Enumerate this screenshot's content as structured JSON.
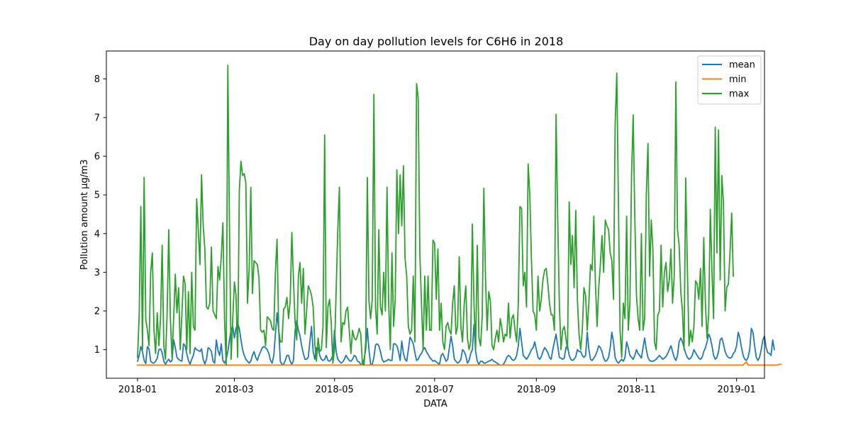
{
  "chart_data": {
    "type": "line",
    "title": "Day on day pollution levels for C6H6 in 2018",
    "xlabel": "DATA",
    "ylabel": "Pollution amount µg/m3",
    "x_start": "2018-01-01",
    "x_end": "2018-12-31",
    "xlim": [
      "2017-12-13",
      "2019-01-18"
    ],
    "ylim": [
      0.26,
      8.72
    ],
    "x_ticks": [
      "2018-01",
      "2018-03",
      "2018-05",
      "2018-07",
      "2018-09",
      "2018-11",
      "2019-01"
    ],
    "y_ticks": [
      1,
      2,
      3,
      4,
      5,
      6,
      7,
      8
    ],
    "grid": false,
    "legend_position": "top-right",
    "series": [
      {
        "name": "mean",
        "color": "#1f77b4",
        "values": [
          0.7,
          0.85,
          1.08,
          0.95,
          0.72,
          0.64,
          1.08,
          1.02,
          0.7,
          0.66,
          0.65,
          0.7,
          0.78,
          1.0,
          1.02,
          0.92,
          0.7,
          0.62,
          0.7,
          0.75,
          0.68,
          0.72,
          1.25,
          1.05,
          0.8,
          0.75,
          0.72,
          0.7,
          1.15,
          1.1,
          0.9,
          0.72,
          0.62,
          0.75,
          0.85,
          1.05,
          1.0,
          0.98,
          0.95,
          1.02,
          0.75,
          0.63,
          0.75,
          1.05,
          1.02,
          0.95,
          0.7,
          0.65,
          1.25,
          0.98,
          0.85,
          1.15,
          0.72,
          0.65,
          0.75,
          0.95,
          1.25,
          1.52,
          1.6,
          1.3,
          1.55,
          1.68,
          1.55,
          1.25,
          1.0,
          0.85,
          0.75,
          0.7,
          0.65,
          0.7,
          0.85,
          0.95,
          0.8,
          0.72,
          0.85,
          0.95,
          1.05,
          1.08,
          1.05,
          1.0,
          0.9,
          0.72,
          0.65,
          0.85,
          1.4,
          1.95,
          1.5,
          0.7,
          0.62,
          0.62,
          0.72,
          0.85,
          0.85,
          0.7,
          0.62,
          0.72,
          1.5,
          1.75,
          1.5,
          1.35,
          1.1,
          0.9,
          0.75,
          0.75,
          0.8,
          1.2,
          1.6,
          0.95,
          0.75,
          1.05,
          1.05,
          0.85,
          0.75,
          0.72,
          0.75,
          0.85,
          0.72,
          0.7,
          0.75,
          0.85,
          1.5,
          0.95,
          0.75,
          0.7,
          0.65,
          0.68,
          0.75,
          0.85,
          0.78,
          0.72,
          0.7,
          0.75,
          0.85,
          0.82,
          0.7,
          0.68,
          0.62,
          0.62,
          0.75,
          1.0,
          1.55,
          1.0,
          0.62,
          0.62,
          0.8,
          1.12,
          1.15,
          1.1,
          0.95,
          0.75,
          0.68,
          0.7,
          0.72,
          0.75,
          0.72,
          0.72,
          1.15,
          1.15,
          1.1,
          0.95,
          0.72,
          1.22,
          0.9,
          0.75,
          0.7,
          1.0,
          1.32,
          1.25,
          1.15,
          0.92,
          0.72,
          0.75,
          0.85,
          0.9,
          1.0,
          1.05,
          0.95,
          0.88,
          0.8,
          0.75,
          0.7,
          0.72,
          0.68,
          0.65,
          0.62,
          0.85,
          0.9,
          0.8,
          0.7,
          0.75,
          1.05,
          1.35,
          1.1,
          0.75,
          0.7,
          0.65,
          0.68,
          0.75,
          1.0,
          0.95,
          0.85,
          0.65,
          0.72,
          0.9,
          1.0,
          1.65,
          0.95,
          0.7,
          0.62,
          0.7,
          0.7,
          0.65,
          0.65,
          0.68,
          0.7,
          0.72,
          0.75,
          0.7,
          0.68,
          0.65,
          0.62,
          0.6,
          0.6,
          0.62,
          0.7,
          0.8,
          0.85,
          0.82,
          0.75,
          0.72,
          0.75,
          0.85,
          1.1,
          1.55,
          1.2,
          0.85,
          0.8,
          0.75,
          0.82,
          0.9,
          1.0,
          1.05,
          1.2,
          1.0,
          0.8,
          0.75,
          0.82,
          0.95,
          1.05,
          1.0,
          0.92,
          0.8,
          0.75,
          1.0,
          1.2,
          1.4,
          1.1,
          0.8,
          0.78,
          0.75,
          0.78,
          1.05,
          1.1,
          0.85,
          0.75,
          0.72,
          0.75,
          0.82,
          1.0,
          0.95,
          0.95,
          0.85,
          0.8,
          0.85,
          1.45,
          1.0,
          0.75,
          0.72,
          0.78,
          0.85,
          0.95,
          1.1,
          1.05,
          0.95,
          0.78,
          0.7,
          0.72,
          0.8,
          1.05,
          1.45,
          1.2,
          0.8,
          0.7,
          0.65,
          0.7,
          0.75,
          0.7,
          0.8,
          1.2,
          1.05,
          0.85,
          0.8,
          0.75,
          0.85,
          1.0,
          0.9,
          0.85,
          0.78,
          1.05,
          1.3,
          1.0,
          0.8,
          0.72,
          0.7,
          0.7,
          0.72,
          0.75,
          0.8,
          0.85,
          0.8,
          0.75,
          0.78,
          0.82,
          0.9,
          1.0,
          1.1,
          0.95,
          0.8,
          0.72,
          0.85,
          1.2,
          1.3,
          1.2,
          1.05,
          0.9,
          0.8,
          0.75,
          0.78,
          0.85,
          1.0,
          0.92,
          0.85,
          0.78,
          0.75,
          0.8,
          0.95,
          1.05,
          1.2,
          1.4,
          1.3,
          1.1,
          0.85,
          0.75,
          0.8,
          0.95,
          1.25,
          1.3,
          1.15,
          0.95,
          0.85,
          0.8,
          0.78,
          0.8,
          0.9,
          0.95,
          1.1,
          1.45,
          1.3,
          1.05,
          0.85,
          0.75,
          0.72,
          0.8,
          1.0,
          1.55,
          1.45,
          1.1,
          0.8,
          0.72,
          0.8,
          1.0,
          1.25,
          1.35,
          1.05,
          0.92,
          0.9,
          0.85,
          1.25,
          1.0
        ]
      },
      {
        "name": "min",
        "color": "#ff7f0e",
        "values": [
          0.6,
          0.6,
          0.6,
          0.6,
          0.6,
          0.6,
          0.6,
          0.6,
          0.6,
          0.6,
          0.6,
          0.6,
          0.6,
          0.6,
          0.6,
          0.6,
          0.6,
          0.6,
          0.6,
          0.6,
          0.6,
          0.6,
          0.6,
          0.6,
          0.6,
          0.6,
          0.6,
          0.6,
          0.6,
          0.6,
          0.6,
          0.6,
          0.6,
          0.6,
          0.6,
          0.6,
          0.6,
          0.6,
          0.6,
          0.6,
          0.6,
          0.6,
          0.6,
          0.6,
          0.6,
          0.6,
          0.6,
          0.6,
          0.6,
          0.6,
          0.6,
          0.6,
          0.6,
          0.6,
          0.6,
          0.6,
          0.6,
          0.6,
          0.6,
          0.6,
          0.6,
          0.6,
          0.6,
          0.6,
          0.6,
          0.6,
          0.6,
          0.6,
          0.6,
          0.6,
          0.6,
          0.6,
          0.6,
          0.6,
          0.6,
          0.6,
          0.6,
          0.6,
          0.6,
          0.6,
          0.6,
          0.6,
          0.6,
          0.6,
          0.6,
          0.6,
          0.6,
          0.6,
          0.6,
          0.6,
          0.6,
          0.6,
          0.6,
          0.6,
          0.6,
          0.6,
          0.6,
          0.6,
          0.6,
          0.6,
          0.6,
          0.6,
          0.6,
          0.6,
          0.6,
          0.6,
          0.6,
          0.6,
          0.6,
          0.6,
          0.6,
          0.6,
          0.6,
          0.6,
          0.6,
          0.6,
          0.6,
          0.6,
          0.6,
          0.6,
          0.6,
          0.6,
          0.6,
          0.6,
          0.6,
          0.6,
          0.6,
          0.6,
          0.6,
          0.6,
          0.6,
          0.6,
          0.6,
          0.6,
          0.6,
          0.6,
          0.6,
          0.6,
          0.6,
          0.6,
          0.6,
          0.6,
          0.6,
          0.6,
          0.6,
          0.6,
          0.6,
          0.6,
          0.6,
          0.6,
          0.6,
          0.6,
          0.6,
          0.6,
          0.6,
          0.6,
          0.6,
          0.6,
          0.6,
          0.6,
          0.6,
          0.6,
          0.6,
          0.6,
          0.6,
          0.6,
          0.6,
          0.6,
          0.6,
          0.6,
          0.6,
          0.6,
          0.6,
          0.6,
          0.6,
          0.6,
          0.6,
          0.6,
          0.6,
          0.6,
          0.6,
          0.6,
          0.6,
          0.6,
          0.6,
          0.6,
          0.6,
          0.6,
          0.6,
          0.6,
          0.6,
          0.6,
          0.6,
          0.6,
          0.6,
          0.6,
          0.6,
          0.6,
          0.6,
          0.6,
          0.6,
          0.6,
          0.6,
          0.6,
          0.6,
          0.6,
          0.6,
          0.6,
          0.6,
          0.6,
          0.6,
          0.6,
          0.6,
          0.6,
          0.6,
          0.6,
          0.6,
          0.6,
          0.6,
          0.6,
          0.6,
          0.6,
          0.6,
          0.6,
          0.6,
          0.6,
          0.6,
          0.6,
          0.6,
          0.6,
          0.6,
          0.6,
          0.6,
          0.6,
          0.6,
          0.6,
          0.6,
          0.6,
          0.6,
          0.6,
          0.6,
          0.6,
          0.6,
          0.6,
          0.6,
          0.6,
          0.6,
          0.6,
          0.6,
          0.6,
          0.6,
          0.6,
          0.6,
          0.6,
          0.6,
          0.6,
          0.6,
          0.6,
          0.6,
          0.6,
          0.6,
          0.6,
          0.6,
          0.6,
          0.6,
          0.6,
          0.6,
          0.6,
          0.6,
          0.6,
          0.6,
          0.6,
          0.6,
          0.6,
          0.6,
          0.6,
          0.6,
          0.6,
          0.6,
          0.6,
          0.6,
          0.6,
          0.6,
          0.6,
          0.6,
          0.6,
          0.6,
          0.6,
          0.6,
          0.6,
          0.6,
          0.6,
          0.6,
          0.6,
          0.6,
          0.6,
          0.6,
          0.6,
          0.6,
          0.6,
          0.6,
          0.6,
          0.6,
          0.6,
          0.6,
          0.6,
          0.6,
          0.6,
          0.6,
          0.6,
          0.6,
          0.6,
          0.6,
          0.6,
          0.6,
          0.6,
          0.6,
          0.6,
          0.6,
          0.6,
          0.6,
          0.6,
          0.6,
          0.6,
          0.6,
          0.6,
          0.6,
          0.6,
          0.6,
          0.6,
          0.6,
          0.6,
          0.6,
          0.6,
          0.6,
          0.6,
          0.6,
          0.6,
          0.6,
          0.6,
          0.6,
          0.6,
          0.6,
          0.6,
          0.6,
          0.6,
          0.6,
          0.6,
          0.6,
          0.6,
          0.6,
          0.6,
          0.6,
          0.6,
          0.6,
          0.6,
          0.6,
          0.6,
          0.6,
          0.6,
          0.6,
          0.6,
          0.6,
          0.6,
          0.6,
          0.6,
          0.6,
          0.6,
          0.6,
          0.6,
          0.65,
          0.68,
          0.6,
          0.6,
          0.6,
          0.6,
          0.6,
          0.6,
          0.6,
          0.6,
          0.6,
          0.6,
          0.6,
          0.6,
          0.6,
          0.6,
          0.6,
          0.6,
          0.6,
          0.6,
          0.6,
          0.62,
          0.62
        ]
      },
      {
        "name": "max",
        "color": "#2ca02c",
        "values": [
          0.8,
          1.9,
          4.7,
          1.0,
          5.45,
          1.8,
          1.5,
          1.1,
          3.0,
          3.5,
          1.5,
          0.9,
          1.95,
          1.1,
          1.8,
          3.7,
          1.1,
          0.75,
          1.9,
          4.1,
          1.8,
          0.8,
          1.8,
          2.95,
          1.95,
          2.6,
          1.0,
          1.9,
          2.9,
          2.7,
          1.0,
          2.5,
          0.9,
          3.0,
          1.6,
          1.5,
          4.9,
          4.1,
          3.2,
          5.52,
          4.2,
          3.6,
          2.1,
          2.05,
          2.2,
          3.65,
          2.0,
          1.9,
          1.8,
          3.15,
          2.8,
          3.4,
          4.28,
          1.8,
          0.6,
          8.35,
          4.2,
          0.75,
          1.8,
          2.75,
          2.4,
          0.8,
          5.1,
          5.87,
          5.5,
          5.55,
          5.3,
          2.2,
          3.1,
          5.2,
          2.45,
          3.3,
          3.25,
          3.2,
          2.85,
          1.5,
          1.45,
          1.5,
          1.1,
          1.85,
          1.8,
          1.75,
          1.55,
          1.5,
          3.0,
          3.85,
          1.5,
          1.2,
          1.2,
          2.05,
          2.1,
          2.35,
          1.8,
          2.25,
          4.03,
          2.8,
          1.7,
          1.25,
          2.9,
          3.25,
          2.2,
          3.1,
          1.4,
          2.0,
          2.65,
          2.55,
          2.4,
          2.1,
          1.15,
          0.7,
          1.3,
          0.95,
          1.0,
          1.6,
          6.55,
          1.05,
          2.1,
          2.3,
          1.7,
          0.65,
          1.0,
          2.5,
          4.1,
          5.2,
          1.2,
          1.7,
          1.65,
          2.0,
          2.1,
          1.5,
          0.9,
          1.5,
          1.3,
          1.25,
          1.35,
          1.55,
          1.4,
          0.65,
          0.6,
          1.2,
          5.45,
          2.25,
          1.8,
          2.3,
          7.6,
          2.1,
          1.4,
          4.1,
          2.1,
          1.9,
          3.0,
          2.0,
          5.2,
          2.2,
          1.0,
          3.5,
          1.6,
          2.3,
          5.65,
          4.0,
          5.52,
          4.2,
          5.75,
          3.35,
          2.9,
          1.6,
          1.4,
          1.5,
          2.9,
          1.2,
          7.88,
          7.5,
          3.5,
          2.2,
          1.0,
          2.9,
          1.5,
          2.9,
          1.5,
          1.5,
          3.83,
          3.75,
          2.3,
          3.6,
          1.5,
          2.2,
          1.2,
          1.0,
          1.6,
          1.7,
          1.5,
          1.4,
          2.2,
          2.65,
          1.4,
          1.6,
          3.4,
          1.6,
          1.2,
          2.15,
          2.65,
          1.3,
          1.0,
          1.2,
          4.25,
          2.2,
          1.0,
          3.7,
          1.3,
          1.1,
          1.85,
          5.17,
          2.9,
          1.5,
          2.5,
          2.25,
          1.1,
          1.0,
          1.3,
          1.5,
          1.2,
          1.8,
          1.55,
          1.2,
          1.4,
          1.35,
          2.2,
          1.3,
          1.8,
          1.9,
          1.5,
          1.2,
          2.2,
          4.7,
          4.65,
          2.65,
          3.0,
          2.1,
          5.8,
          5.0,
          3.35,
          2.0,
          1.9,
          1.5,
          2.9,
          2.0,
          2.3,
          2.8,
          3.05,
          3.1,
          2.7,
          2.2,
          1.9,
          1.9,
          1.5,
          7.08,
          4.4,
          2.2,
          1.0,
          1.5,
          1.6,
          1.3,
          1.0,
          4.82,
          3.2,
          3.95,
          2.6,
          4.6,
          2.3,
          1.4,
          1.0,
          1.5,
          2.6,
          2.4,
          1.5,
          2.2,
          3.2,
          3.05,
          4.45,
          2.7,
          1.6,
          2.6,
          3.2,
          3.95,
          3.0,
          4.35,
          4.2,
          4.1,
          3.5,
          3.3,
          2.3,
          6.8,
          8.15,
          4.8,
          1.5,
          0.8,
          2.2,
          1.8,
          4.45,
          1.5,
          2.2,
          5.5,
          7.07,
          4.4,
          2.4,
          1.8,
          1.5,
          4.0,
          1.5,
          1.8,
          5.0,
          6.33,
          2.9,
          4.35,
          3.6,
          1.2,
          1.0,
          1.9,
          2.0,
          3.7,
          2.1,
          3.0,
          3.25,
          2.5,
          2.8,
          3.6,
          2.2,
          2.9,
          7.92,
          4.1,
          3.7,
          2.5,
          2.0,
          1.0,
          5.44,
          3.15,
          1.1,
          1.5,
          1.2,
          1.6,
          2.78,
          2.7,
          2.3,
          3.1,
          1.6,
          3.9,
          2.2,
          1.3,
          1.9,
          4.63,
          3.0,
          1.8,
          6.75,
          3.5,
          6.68,
          2.8,
          5.5,
          4.8,
          2.0,
          2.6,
          2.7,
          3.5,
          4.53,
          2.9
        ]
      }
    ]
  }
}
